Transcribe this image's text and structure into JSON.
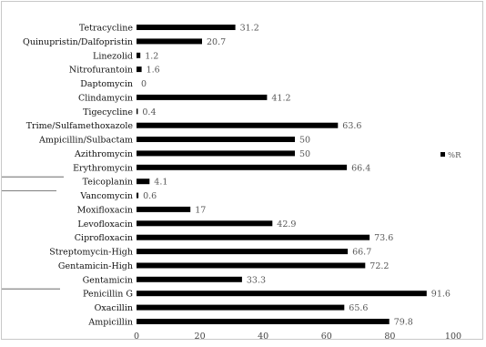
{
  "chart_data": {
    "type": "bar",
    "orientation": "horizontal",
    "title": "",
    "xlabel": "",
    "ylabel": "",
    "xlim": [
      0,
      100
    ],
    "x_ticks": [
      0,
      20,
      40,
      60,
      80,
      100
    ],
    "grid": false,
    "legend": {
      "position": "right",
      "entries": [
        "%R"
      ]
    },
    "bar_color": "#000000",
    "categories": [
      "Tetracycline",
      "Quinupristin/Dalfopristin",
      "Linezolid",
      "Nitrofurantoin",
      "Daptomycin",
      "Clindamycin",
      "Tigecycline",
      "Trime/Sulfamethoxazole",
      "Ampicillin/Sulbactam",
      "Azithromycin",
      "Erythromycin",
      "Teicoplanin",
      "Vancomycin",
      "Moxifloxacin",
      "Levofloxacin",
      "Ciprofloxacin",
      "Streptomycin-High",
      "Gentamicin-High",
      "Gentamicin",
      "Penicillin G",
      "Oxacillin",
      "Ampicillin"
    ],
    "series": [
      {
        "name": "%R",
        "values": [
          31.2,
          20.7,
          1.2,
          1.6,
          0,
          41.2,
          0.4,
          63.6,
          50,
          50,
          66.4,
          4.1,
          0.6,
          17,
          42.9,
          73.6,
          66.7,
          72.2,
          33.3,
          91.6,
          65.6,
          79.8
        ],
        "labels": [
          "31.2",
          "20.7",
          "1.2",
          "1.6",
          "0",
          "41.2",
          "0.4",
          "63.6",
          "50",
          "50",
          "66.4",
          "4.1",
          "0.6",
          "17",
          "42.9",
          "73.6",
          "66.7",
          "72.2",
          "33.3",
          "91.6",
          "65.6",
          "79.8"
        ]
      }
    ]
  }
}
